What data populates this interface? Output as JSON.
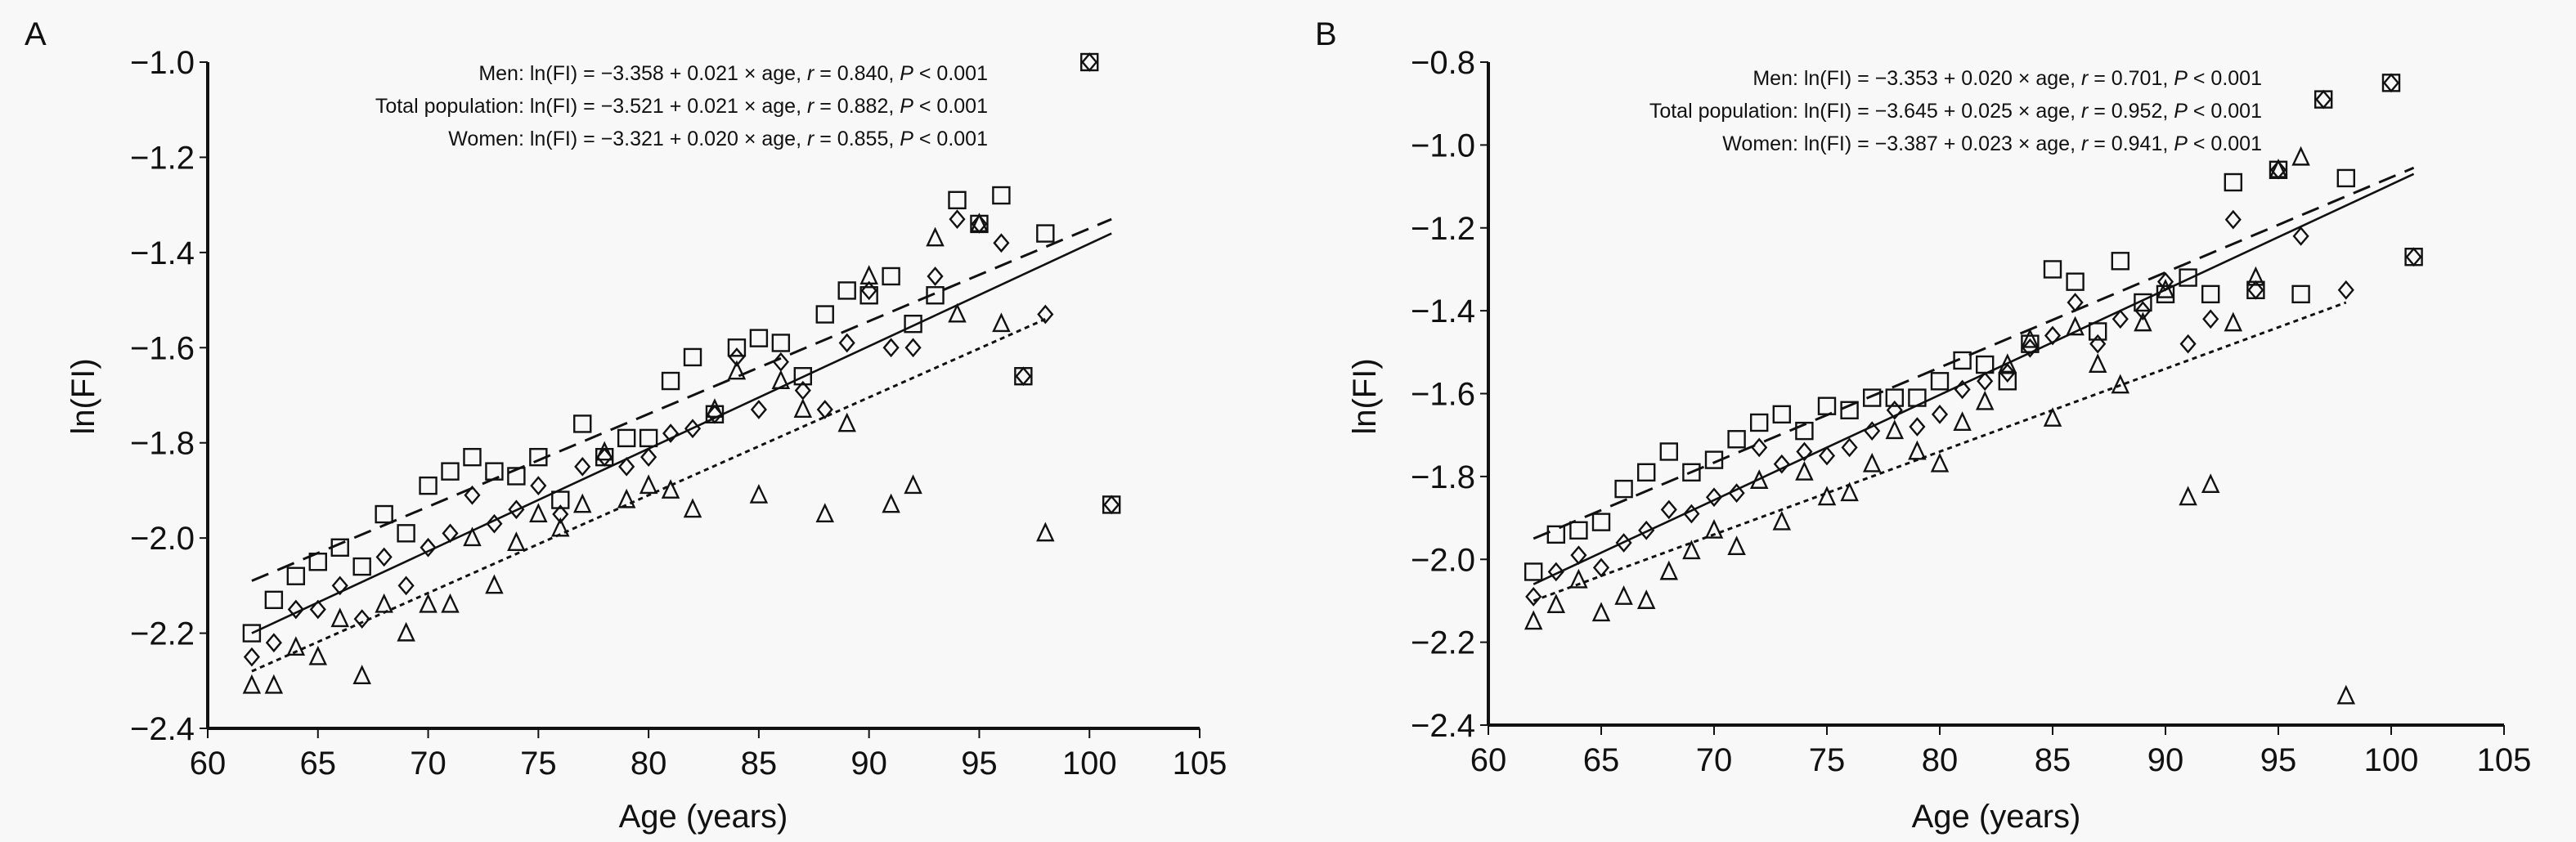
{
  "chart_data": [
    {
      "type": "scatter",
      "panel_label": "A",
      "title": "",
      "xlabel": "Age (years)",
      "ylabel": "ln(FI)",
      "xlim": [
        60,
        105
      ],
      "ylim": [
        -2.4,
        -1.0
      ],
      "xticks": [
        60,
        65,
        70,
        75,
        80,
        85,
        90,
        95,
        100,
        105
      ],
      "xtick_labels": [
        "60",
        "65",
        "70",
        "75",
        "80",
        "85",
        "90",
        "95",
        "100",
        "105"
      ],
      "yticks": [
        -1.0,
        -1.2,
        -1.4,
        -1.6,
        -1.8,
        -2.0,
        -2.2,
        -2.4
      ],
      "ytick_labels": [
        "−1.0",
        "−1.2",
        "−1.4",
        "−1.6",
        "−1.8",
        "−2.0",
        "−2.2",
        "−2.4"
      ],
      "grid": false,
      "annotations": [
        {
          "label": "Men: ",
          "text": "ln(FI) = −3.358 + 0.021 × age, ",
          "r_label": "r",
          "r_text": " = 0.840, ",
          "p_label": "P",
          "p_text": " < 0.001"
        },
        {
          "label": "Total population: ",
          "text": "ln(FI) = −3.521 + 0.021 × age, ",
          "r_label": "r",
          "r_text": " = 0.882, ",
          "p_label": "P",
          "p_text": " < 0.001"
        },
        {
          "label": "Women: ",
          "text": "ln(FI) = −3.321 + 0.020 × age, ",
          "r_label": "r",
          "r_text": " = 0.855, ",
          "p_label": "P",
          "p_text": " < 0.001"
        }
      ],
      "series": [
        {
          "name": "Men",
          "marker": "square",
          "fit_style": "dashed",
          "fit_line": {
            "x": [
              62,
              101
            ],
            "y": [
              -2.09,
              -1.33
            ]
          },
          "x": [
            62,
            63,
            64,
            65,
            66,
            67,
            68,
            69,
            70,
            71,
            72,
            73,
            74,
            75,
            76,
            77,
            78,
            79,
            80,
            81,
            82,
            83,
            84,
            85,
            86,
            87,
            88,
            89,
            90,
            91,
            92,
            93,
            94,
            95,
            96,
            97,
            98,
            100,
            101
          ],
          "y": [
            -2.2,
            -2.13,
            -2.08,
            -2.05,
            -2.02,
            -2.06,
            -1.95,
            -1.99,
            -1.89,
            -1.86,
            -1.83,
            -1.86,
            -1.87,
            -1.83,
            -1.92,
            -1.76,
            -1.83,
            -1.79,
            -1.79,
            -1.67,
            -1.62,
            -1.74,
            -1.6,
            -1.58,
            -1.59,
            -1.66,
            -1.53,
            -1.48,
            -1.49,
            -1.45,
            -1.55,
            -1.49,
            -1.29,
            -1.34,
            -1.28,
            -1.66,
            -1.36,
            -1.0,
            -1.93
          ]
        },
        {
          "name": "Total population",
          "marker": "diamond",
          "fit_style": "solid",
          "fit_line": {
            "x": [
              62,
              101
            ],
            "y": [
              -2.2,
              -1.36
            ]
          },
          "x": [
            62,
            63,
            64,
            65,
            66,
            67,
            68,
            69,
            70,
            71,
            72,
            73,
            74,
            75,
            76,
            77,
            78,
            79,
            80,
            81,
            82,
            83,
            84,
            85,
            86,
            87,
            88,
            89,
            90,
            91,
            92,
            93,
            94,
            95,
            96,
            97,
            98,
            100,
            101
          ],
          "y": [
            -2.25,
            -2.22,
            -2.15,
            -2.15,
            -2.1,
            -2.17,
            -2.04,
            -2.1,
            -2.02,
            -1.99,
            -1.91,
            -1.97,
            -1.94,
            -1.89,
            -1.95,
            -1.85,
            -1.83,
            -1.85,
            -1.83,
            -1.78,
            -1.77,
            -1.74,
            -1.62,
            -1.73,
            -1.63,
            -1.69,
            -1.73,
            -1.59,
            -1.48,
            -1.6,
            -1.6,
            -1.45,
            -1.33,
            -1.34,
            -1.38,
            -1.66,
            -1.53,
            -1.0,
            -1.93
          ]
        },
        {
          "name": "Women",
          "marker": "triangle",
          "fit_style": "dotted",
          "fit_line": {
            "x": [
              62,
              98
            ],
            "y": [
              -2.28,
              -1.54
            ]
          },
          "x": [
            62,
            63,
            64,
            65,
            66,
            67,
            68,
            69,
            70,
            71,
            72,
            73,
            74,
            75,
            76,
            77,
            78,
            79,
            80,
            81,
            82,
            83,
            84,
            85,
            86,
            87,
            88,
            89,
            90,
            91,
            92,
            93,
            94,
            95,
            96,
            98
          ],
          "y": [
            -2.31,
            -2.31,
            -2.23,
            -2.25,
            -2.17,
            -2.29,
            -2.14,
            -2.2,
            -2.14,
            -2.14,
            -2.0,
            -2.1,
            -2.01,
            -1.95,
            -1.98,
            -1.93,
            -1.82,
            -1.92,
            -1.89,
            -1.9,
            -1.94,
            -1.73,
            -1.65,
            -1.91,
            -1.67,
            -1.73,
            -1.95,
            -1.76,
            -1.45,
            -1.93,
            -1.89,
            -1.37,
            -1.53,
            -1.34,
            -1.55,
            -1.99
          ]
        }
      ]
    },
    {
      "type": "scatter",
      "panel_label": "B",
      "title": "",
      "xlabel": "Age (years)",
      "ylabel": "ln(FI)",
      "xlim": [
        60,
        105
      ],
      "ylim": [
        -2.4,
        -0.8
      ],
      "xticks": [
        60,
        65,
        70,
        75,
        80,
        85,
        90,
        95,
        100,
        105
      ],
      "xtick_labels": [
        "60",
        "65",
        "70",
        "75",
        "80",
        "85",
        "90",
        "95",
        "100",
        "105"
      ],
      "yticks": [
        -0.8,
        -1.0,
        -1.2,
        -1.4,
        -1.6,
        -1.8,
        -2.0,
        -2.2,
        -2.4
      ],
      "ytick_labels": [
        "−0.8",
        "−1.0",
        "−1.2",
        "−1.4",
        "−1.6",
        "−1.8",
        "−2.0",
        "−2.2",
        "−2.4"
      ],
      "grid": false,
      "annotations": [
        {
          "label": "Men: ",
          "text": "ln(FI) = −3.353 + 0.020 × age, ",
          "r_label": "r",
          "r_text": " = 0.701, ",
          "p_label": "P",
          "p_text": " < 0.001"
        },
        {
          "label": "Total population: ",
          "text": "ln(FI) = −3.645 + 0.025 × age, ",
          "r_label": "r",
          "r_text": " = 0.952, ",
          "p_label": "P",
          "p_text": " < 0.001"
        },
        {
          "label": "Women: ",
          "text": "ln(FI) = −3.387 + 0.023 × age, ",
          "r_label": "r",
          "r_text": " = 0.941, ",
          "p_label": "P",
          "p_text": " < 0.001"
        }
      ],
      "series": [
        {
          "name": "Men",
          "marker": "square",
          "fit_style": "dashed",
          "fit_line": {
            "x": [
              62,
              101
            ],
            "y": [
              -1.95,
              -1.055
            ]
          },
          "x": [
            62,
            63,
            64,
            65,
            66,
            67,
            68,
            69,
            70,
            71,
            72,
            73,
            74,
            75,
            76,
            77,
            78,
            79,
            80,
            81,
            82,
            83,
            84,
            85,
            86,
            87,
            88,
            89,
            90,
            91,
            92,
            93,
            94,
            95,
            96,
            97,
            98,
            100,
            101
          ],
          "y": [
            -2.03,
            -1.94,
            -1.93,
            -1.91,
            -1.83,
            -1.79,
            -1.74,
            -1.79,
            -1.76,
            -1.71,
            -1.67,
            -1.65,
            -1.69,
            -1.63,
            -1.64,
            -1.61,
            -1.61,
            -1.61,
            -1.57,
            -1.52,
            -1.53,
            -1.57,
            -1.48,
            -1.3,
            -1.33,
            -1.45,
            -1.28,
            -1.38,
            -1.36,
            -1.32,
            -1.36,
            -1.09,
            -1.35,
            -1.06,
            -1.36,
            -0.89,
            -1.08,
            -0.85,
            -1.27
          ]
        },
        {
          "name": "Total population",
          "marker": "diamond",
          "fit_style": "solid",
          "fit_line": {
            "x": [
              62,
              101
            ],
            "y": [
              -2.06,
              -1.07
            ]
          },
          "x": [
            62,
            63,
            64,
            65,
            66,
            67,
            68,
            69,
            70,
            71,
            72,
            73,
            74,
            75,
            76,
            77,
            78,
            79,
            80,
            81,
            82,
            83,
            84,
            85,
            86,
            87,
            88,
            89,
            90,
            91,
            92,
            93,
            94,
            95,
            96,
            97,
            98,
            100,
            101
          ],
          "y": [
            -2.09,
            -2.03,
            -1.99,
            -2.02,
            -1.96,
            -1.93,
            -1.88,
            -1.89,
            -1.85,
            -1.84,
            -1.73,
            -1.77,
            -1.74,
            -1.75,
            -1.73,
            -1.69,
            -1.64,
            -1.68,
            -1.65,
            -1.59,
            -1.57,
            -1.55,
            -1.49,
            -1.46,
            -1.38,
            -1.48,
            -1.42,
            -1.4,
            -1.33,
            -1.48,
            -1.42,
            -1.18,
            -1.35,
            -1.06,
            -1.22,
            -0.89,
            -1.35,
            -0.85,
            -1.27
          ]
        },
        {
          "name": "Women",
          "marker": "triangle",
          "fit_style": "dotted",
          "fit_line": {
            "x": [
              62,
              98
            ],
            "y": [
              -2.1,
              -1.38
            ]
          },
          "x": [
            62,
            63,
            64,
            65,
            66,
            67,
            68,
            69,
            70,
            71,
            72,
            73,
            74,
            75,
            76,
            77,
            78,
            79,
            80,
            81,
            82,
            83,
            84,
            85,
            86,
            87,
            88,
            89,
            90,
            91,
            92,
            93,
            94,
            95,
            96,
            98
          ],
          "y": [
            -2.15,
            -2.11,
            -2.05,
            -2.13,
            -2.09,
            -2.1,
            -2.03,
            -1.98,
            -1.93,
            -1.97,
            -1.81,
            -1.91,
            -1.79,
            -1.85,
            -1.84,
            -1.77,
            -1.69,
            -1.74,
            -1.77,
            -1.67,
            -1.62,
            -1.53,
            -1.47,
            -1.66,
            -1.44,
            -1.53,
            -1.58,
            -1.43,
            -1.35,
            -1.85,
            -1.82,
            -1.43,
            -1.32,
            -1.06,
            -1.03,
            -2.33
          ]
        }
      ]
    }
  ]
}
